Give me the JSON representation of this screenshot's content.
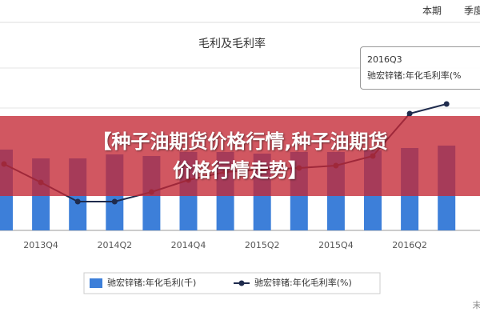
{
  "tabs": [
    "本期",
    "季度"
  ],
  "chart_data": {
    "type": "bar-line",
    "title": "毛利及毛利率",
    "categories": [
      null,
      "2013Q4",
      null,
      "2014Q2",
      null,
      "2014Q4",
      null,
      "2015Q2",
      null,
      "2015Q4",
      null,
      "2016Q2",
      null
    ],
    "series": [
      {
        "name": "驰宏锌锗:年化毛利(千)",
        "color": "#3d7fd9",
        "values": [
          101,
          90,
          90,
          95,
          93,
          98,
          98,
          96,
          98,
          98,
          100,
          103,
          106
        ]
      },
      {
        "name": "驰宏锌锗:年化毛利率(%)",
        "color": "#1f2b4d",
        "axis": "y2",
        "values": [
          16.6,
          12,
          7.2,
          7.2,
          9.6,
          12.6,
          14.6,
          15.2,
          15.6,
          16.2,
          18.6,
          29.2,
          31.6
        ]
      }
    ]
  },
  "tooltip": {
    "title": "2016Q3",
    "label": "驰宏锌锗:年化毛利率(%"
  },
  "banner": {
    "lines": [
      "【种子油期货价格行情,种子油期货",
      "价格行情走势】"
    ]
  },
  "corner": "末"
}
